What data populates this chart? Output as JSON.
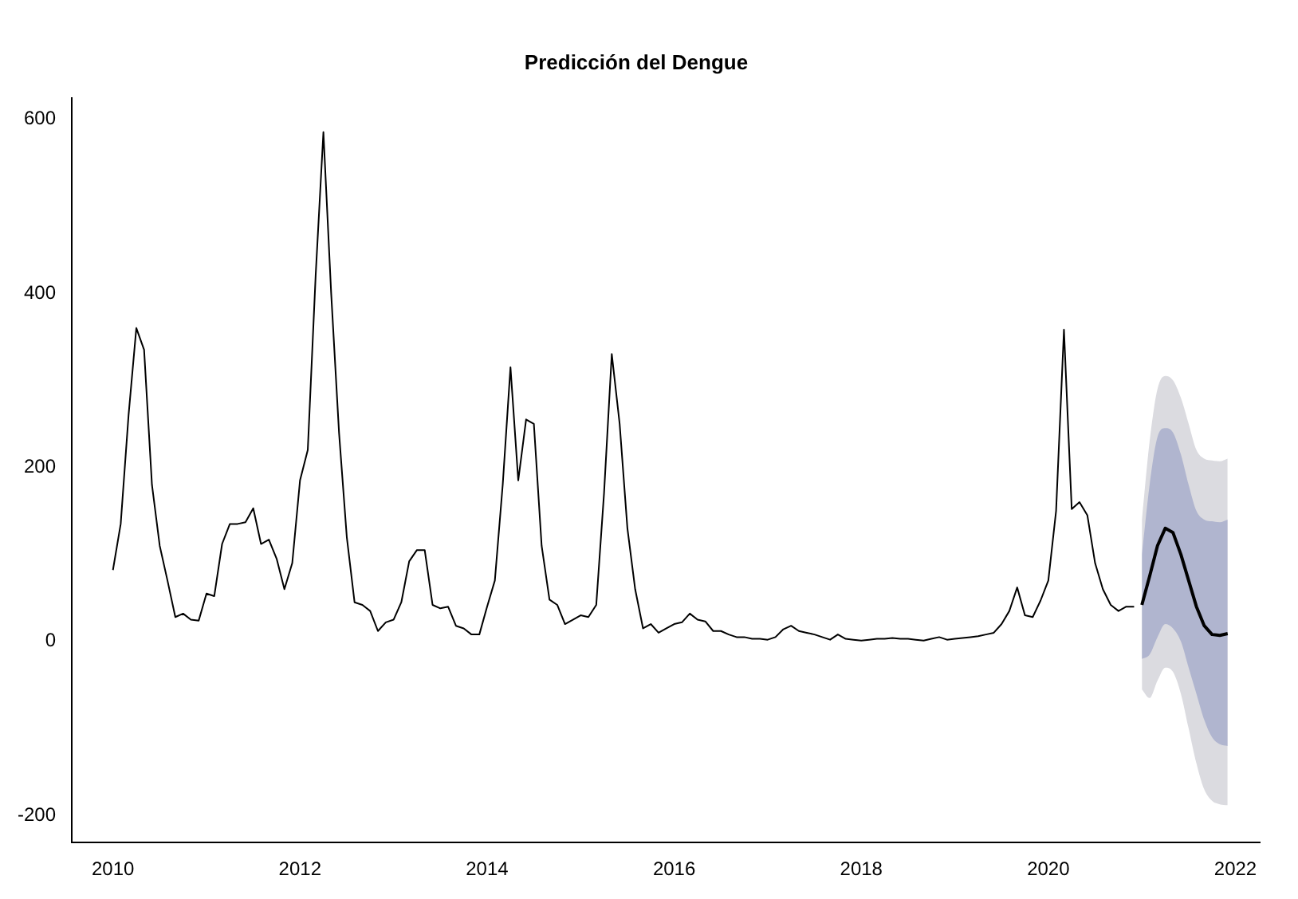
{
  "chart_data": {
    "type": "line",
    "title": "Predicción del Dengue",
    "xlim": [
      2009.56,
      2022.26
    ],
    "xticks": [
      2010,
      2012,
      2014,
      2016,
      2018,
      2020,
      2022
    ],
    "ylim": [
      -231,
      624
    ],
    "yticks": [
      -200,
      0,
      200,
      400,
      600
    ],
    "grid": false,
    "legend": false,
    "marker": "none",
    "line_style": "solid",
    "series": [
      {
        "color": "#000000",
        "x": [
          2010,
          2010.083,
          2010.167,
          2010.25,
          2010.333,
          2010.417,
          2010.5,
          2010.583,
          2010.667,
          2010.75,
          2010.833,
          2010.917,
          2011,
          2011.083,
          2011.167,
          2011.25,
          2011.333,
          2011.417,
          2011.5,
          2011.583,
          2011.667,
          2011.75,
          2011.833,
          2011.917,
          2012,
          2012.083,
          2012.167,
          2012.25,
          2012.333,
          2012.417,
          2012.5,
          2012.583,
          2012.667,
          2012.75,
          2012.833,
          2012.917,
          2013,
          2013.083,
          2013.167,
          2013.25,
          2013.333,
          2013.417,
          2013.5,
          2013.583,
          2013.667,
          2013.75,
          2013.833,
          2013.917,
          2014,
          2014.083,
          2014.167,
          2014.25,
          2014.333,
          2014.417,
          2014.5,
          2014.583,
          2014.667,
          2014.75,
          2014.833,
          2014.917,
          2015,
          2015.083,
          2015.167,
          2015.25,
          2015.333,
          2015.417,
          2015.5,
          2015.583,
          2015.667,
          2015.75,
          2015.833,
          2015.917,
          2016,
          2016.083,
          2016.167,
          2016.25,
          2016.333,
          2016.417,
          2016.5,
          2016.583,
          2016.667,
          2016.75,
          2016.833,
          2016.917,
          2017,
          2017.083,
          2017.167,
          2017.25,
          2017.333,
          2017.417,
          2017.5,
          2017.583,
          2017.667,
          2017.75,
          2017.833,
          2017.917,
          2018,
          2018.083,
          2018.167,
          2018.25,
          2018.333,
          2018.417,
          2018.5,
          2018.583,
          2018.667,
          2018.75,
          2018.833,
          2018.917,
          2019,
          2019.083,
          2019.167,
          2019.25,
          2019.333,
          2019.417,
          2019.5,
          2019.583,
          2019.667,
          2019.75,
          2019.833,
          2019.917,
          2020,
          2020.083,
          2020.167,
          2020.25,
          2020.333,
          2020.417,
          2020.5,
          2020.583,
          2020.667,
          2020.75,
          2020.833,
          2020.917
        ],
        "values": [
          82,
          135,
          260,
          360,
          335,
          180,
          110,
          70,
          28,
          32,
          25,
          24,
          55,
          52,
          112,
          135,
          135,
          137,
          153,
          112,
          117,
          95,
          60,
          90,
          185,
          220,
          420,
          585,
          400,
          240,
          120,
          45,
          42,
          35,
          12,
          22,
          25,
          45,
          92,
          105,
          105,
          42,
          38,
          40,
          18,
          15,
          8,
          8,
          40,
          70,
          180,
          315,
          185,
          255,
          250,
          110,
          48,
          42,
          20,
          25,
          30,
          28,
          42,
          170,
          330,
          250,
          130,
          60,
          15,
          20,
          10,
          15,
          20,
          22,
          32,
          25,
          23,
          12,
          12,
          8,
          5,
          5,
          3,
          3,
          2,
          5,
          14,
          18,
          12,
          10,
          8,
          5,
          2,
          8,
          3,
          2,
          1,
          2,
          3,
          3,
          4,
          3,
          3,
          2,
          1,
          3,
          5,
          2,
          3,
          4,
          5,
          6,
          8,
          10,
          20,
          35,
          62,
          30,
          28,
          47,
          70,
          150,
          358,
          152,
          160,
          145,
          90,
          60,
          42,
          35,
          40,
          40
        ]
      },
      {
        "color": "#dbdbe0",
        "x": [
          2021,
          2021.083,
          2021.167,
          2021.25,
          2021.333,
          2021.417,
          2021.5,
          2021.583,
          2021.667,
          2021.75,
          2021.833,
          2021.917
        ],
        "values": [
          null,
          null,
          null,
          null,
          null,
          null,
          null,
          null,
          null,
          null,
          null,
          null
        ],
        "lower": [
          -55,
          -65,
          -45,
          -30,
          -35,
          -60,
          -100,
          -140,
          -170,
          -183,
          -187,
          -188
        ],
        "upper": [
          140,
          230,
          290,
          305,
          300,
          280,
          250,
          220,
          210,
          208,
          207,
          210
        ]
      },
      {
        "color": "#b0b5cf",
        "x": [
          2021,
          2021.083,
          2021.167,
          2021.25,
          2021.333,
          2021.417,
          2021.5,
          2021.583,
          2021.667,
          2021.75,
          2021.833,
          2021.917
        ],
        "values": [
          null,
          null,
          null,
          null,
          null,
          null,
          null,
          null,
          null,
          null,
          null,
          null
        ],
        "lower": [
          -20,
          -15,
          5,
          20,
          15,
          0,
          -30,
          -60,
          -90,
          -110,
          -118,
          -120
        ],
        "upper": [
          100,
          180,
          235,
          245,
          240,
          215,
          180,
          150,
          140,
          138,
          137,
          140
        ]
      },
      {
        "color": "#000000",
        "x": [
          2021,
          2021.083,
          2021.167,
          2021.25,
          2021.333,
          2021.417,
          2021.5,
          2021.583,
          2021.667,
          2021.75,
          2021.833,
          2021.917
        ],
        "values": [
          42,
          75,
          110,
          130,
          125,
          100,
          70,
          40,
          18,
          8,
          7,
          9
        ]
      }
    ]
  }
}
